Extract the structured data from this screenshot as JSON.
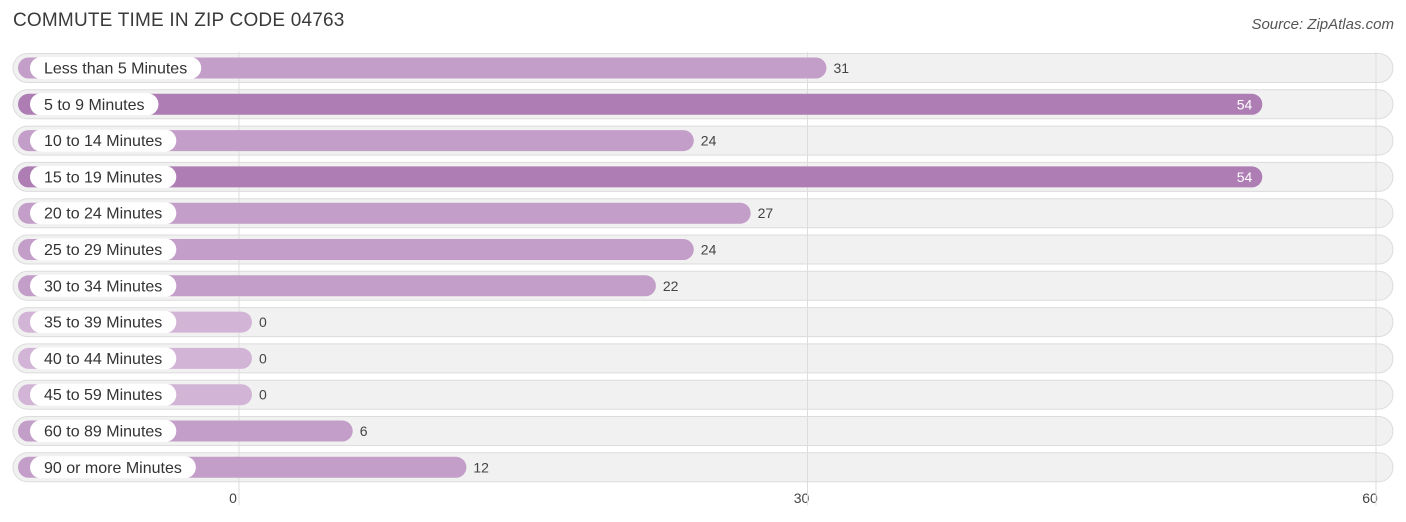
{
  "header": {
    "title": "COMMUTE TIME IN ZIP CODE 04763",
    "source": "Source: ZipAtlas.com"
  },
  "colors": {
    "bar_strong": "#ad7db4",
    "bar_medium": "#c39ec8",
    "bar_light": "#d2b5d6",
    "row_background": "#f1f1f1",
    "value_on_bar": "#ffffff",
    "value_outside": "#444444"
  },
  "chart_data": {
    "type": "bar",
    "orientation": "horizontal",
    "title": "COMMUTE TIME IN ZIP CODE 04763",
    "categories": [
      "Less than 5 Minutes",
      "5 to 9 Minutes",
      "10 to 14 Minutes",
      "15 to 19 Minutes",
      "20 to 24 Minutes",
      "25 to 29 Minutes",
      "30 to 34 Minutes",
      "35 to 39 Minutes",
      "40 to 44 Minutes",
      "45 to 59 Minutes",
      "60 to 89 Minutes",
      "90 or more Minutes"
    ],
    "values": [
      31,
      54,
      24,
      54,
      27,
      24,
      22,
      0,
      0,
      0,
      6,
      12
    ],
    "xlim": [
      0,
      60
    ],
    "xticks": [
      0,
      30,
      60
    ],
    "grid": true,
    "legend": "none"
  }
}
